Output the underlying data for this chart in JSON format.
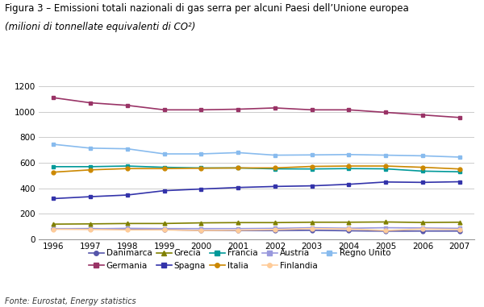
{
  "title": "Figura 3 – Emissioni totali nazionali di gas serra per alcuni Paesi dell’Unione europea",
  "subtitle": "(milioni di tonnellate equivalenti di CO²)",
  "fonte": "Fonte: Eurostat, Energy statistics",
  "years": [
    1996,
    1997,
    1998,
    1999,
    2000,
    2001,
    2002,
    2003,
    2004,
    2005,
    2006,
    2007
  ],
  "series_order": [
    "Danimarca",
    "Germania",
    "Grecia",
    "Spagna",
    "Francia",
    "Italia",
    "Austria",
    "Finlandia",
    "Regno Unito"
  ],
  "series": {
    "Danimarca": {
      "values": [
        84,
        85,
        83,
        78,
        70,
        70,
        70,
        72,
        68,
        65,
        66,
        66
      ],
      "color": "#5555aa",
      "marker": "o",
      "linewidth": 1.2
    },
    "Germania": {
      "values": [
        1110,
        1070,
        1050,
        1015,
        1015,
        1020,
        1030,
        1015,
        1015,
        995,
        975,
        955
      ],
      "color": "#993366",
      "marker": "s",
      "linewidth": 1.2
    },
    "Grecia": {
      "values": [
        120,
        122,
        125,
        125,
        130,
        132,
        132,
        135,
        135,
        137,
        133,
        135
      ],
      "color": "#808000",
      "marker": "^",
      "linewidth": 1.2
    },
    "Spagna": {
      "values": [
        320,
        335,
        348,
        382,
        395,
        407,
        415,
        420,
        432,
        450,
        447,
        452
      ],
      "color": "#3333aa",
      "marker": "s",
      "linewidth": 1.2
    },
    "Francia": {
      "values": [
        570,
        570,
        575,
        565,
        560,
        560,
        553,
        552,
        555,
        553,
        535,
        530
      ],
      "color": "#009999",
      "marker": "s",
      "linewidth": 1.2
    },
    "Italia": {
      "values": [
        527,
        545,
        555,
        555,
        558,
        560,
        560,
        572,
        575,
        575,
        565,
        552
      ],
      "color": "#cc8800",
      "marker": "o",
      "linewidth": 1.2
    },
    "Austria": {
      "values": [
        85,
        83,
        87,
        85,
        85,
        85,
        87,
        92,
        88,
        92,
        90,
        87
      ],
      "color": "#9999dd",
      "marker": "s",
      "linewidth": 1.2
    },
    "Finlandia": {
      "values": [
        80,
        78,
        75,
        75,
        70,
        73,
        77,
        85,
        82,
        70,
        82,
        78
      ],
      "color": "#ffcc99",
      "marker": "o",
      "linewidth": 1.2
    },
    "Regno Unito": {
      "values": [
        745,
        715,
        710,
        670,
        670,
        680,
        660,
        662,
        665,
        660,
        655,
        645
      ],
      "color": "#88bbee",
      "marker": "s",
      "linewidth": 1.2
    }
  },
  "ylim": [
    0,
    1250
  ],
  "yticks": [
    0,
    200,
    400,
    600,
    800,
    1000,
    1200
  ],
  "bg_color": "#ffffff",
  "plot_bg_color": "#ffffff",
  "grid_color": "#cccccc",
  "title_fontsize": 8.5,
  "subtitle_fontsize": 8.5,
  "tick_fontsize": 7.5,
  "legend_fontsize": 7.5,
  "fonte_fontsize": 7
}
